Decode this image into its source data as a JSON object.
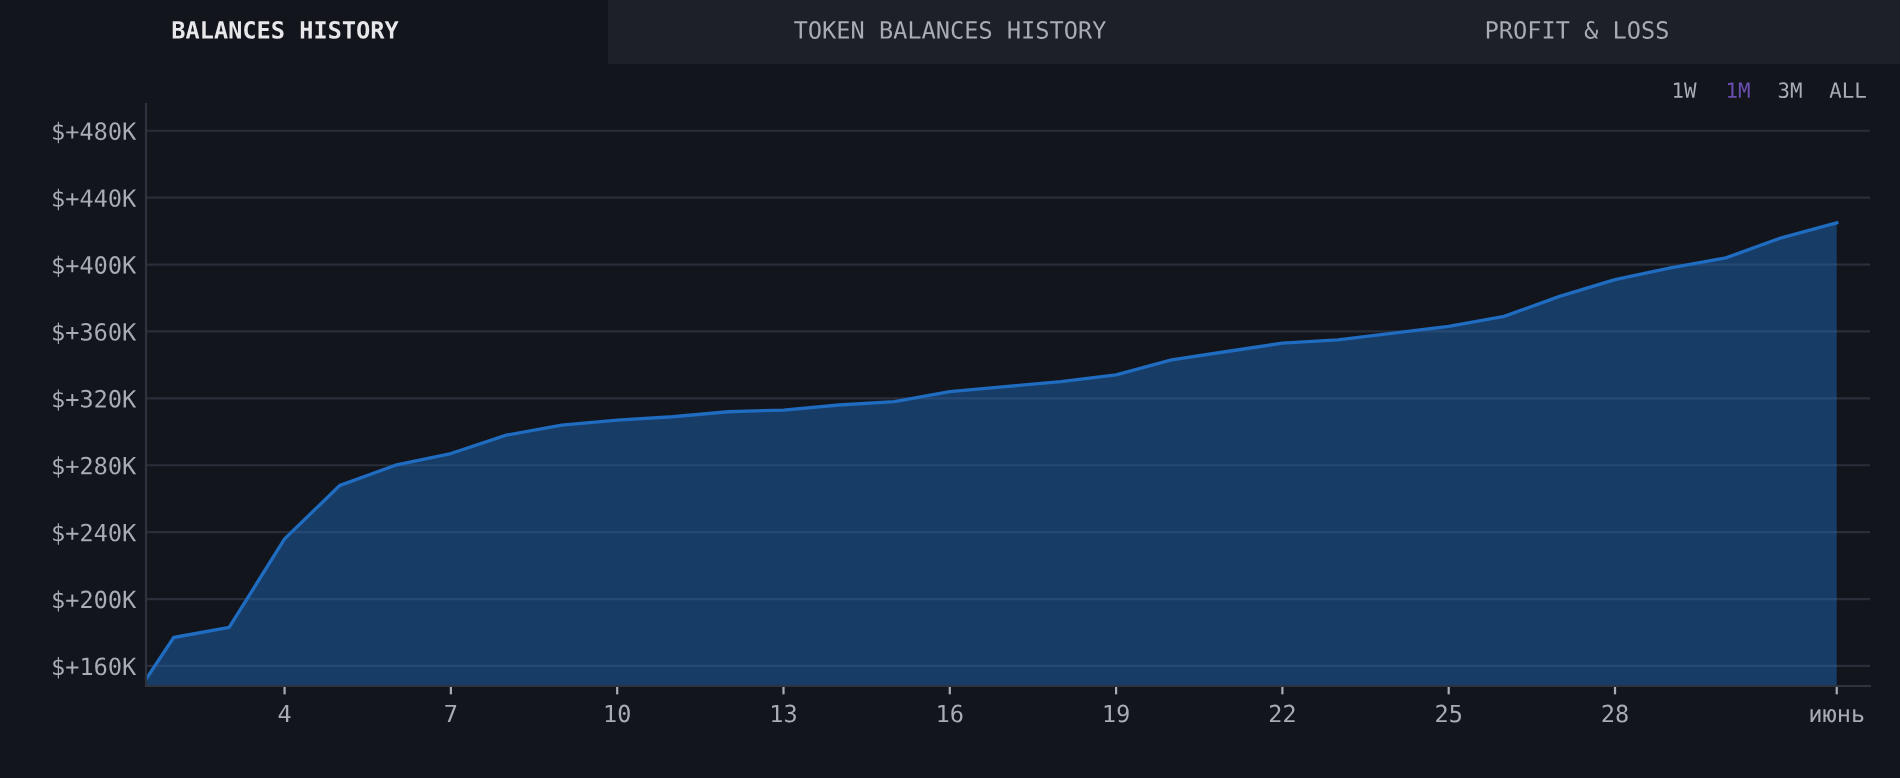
{
  "chart_data": {
    "type": "area",
    "title": "BALANCES HISTORY",
    "annotations": [
      "TOKEN BALANCES HISTORY",
      "PROFIT & LOSS",
      "1W",
      "1M",
      "3M",
      "ALL"
    ],
    "x": [
      1.5,
      2,
      3,
      4,
      5,
      6,
      7,
      8,
      9,
      10,
      11,
      12,
      13,
      14,
      15,
      16,
      17,
      18,
      19,
      20,
      21,
      22,
      23,
      24,
      25,
      26,
      27,
      28,
      29,
      30,
      31,
      32
    ],
    "series": [
      {
        "color": "#1f6cc0",
        "values": [
          152000,
          177000,
          183000,
          236000,
          268000,
          280000,
          287000,
          298000,
          304000,
          307000,
          309000,
          312000,
          313000,
          316000,
          318000,
          324000,
          327000,
          330000,
          334000,
          343000,
          348000,
          353000,
          355000,
          359000,
          363000,
          369000,
          381000,
          391000,
          398000,
          404000,
          416000,
          425000
        ]
      }
    ],
    "xlim": [
      1.5,
      32.6
    ],
    "ylim": [
      148000,
      496000
    ],
    "xticks": [
      4,
      7,
      10,
      13,
      16,
      19,
      22,
      25,
      28,
      {
        "value": 32,
        "label": "июнь"
      }
    ],
    "yticks": [
      {
        "value": 160000,
        "label": "$+160K"
      },
      {
        "value": 200000,
        "label": "$+200K"
      },
      {
        "value": 240000,
        "label": "$+240K"
      },
      {
        "value": 280000,
        "label": "$+280K"
      },
      {
        "value": 320000,
        "label": "$+320K"
      },
      {
        "value": 360000,
        "label": "$+360K"
      },
      {
        "value": 400000,
        "label": "$+400K"
      },
      {
        "value": 440000,
        "label": "$+440K"
      },
      {
        "value": 480000,
        "label": "$+480K"
      }
    ],
    "grid": "y"
  }
}
